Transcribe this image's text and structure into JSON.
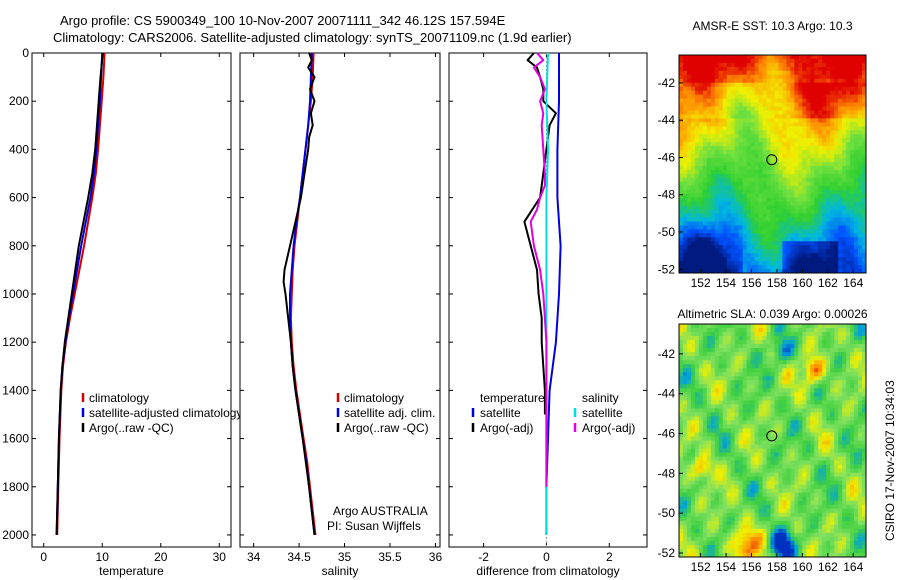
{
  "header": {
    "title_line1": "Argo profile: CS 5900349_100 10-Nov-2007 20071111_342 46.12S 157.594E",
    "title_line2": "Climatology: CARS2006. Satellite-adjusted climatology: synTS_20071109.nc (1.9d earlier)"
  },
  "side_label": "CSIRO 17-Nov-2007 10:34:03",
  "credits": {
    "line1": "Argo AUSTRALIA",
    "line2": "PI: Susan Wijffels"
  },
  "colors": {
    "red": "#d40000",
    "blue": "#0000e0",
    "black": "#000000",
    "cyan": "#00e0e0",
    "magenta": "#e000e0",
    "grid": "#cccccc"
  },
  "chart_data": [
    {
      "type": "line",
      "id": "temperature",
      "xlabel": "temperature",
      "xlim": [
        -2,
        32
      ],
      "ylim": [
        0,
        2050
      ],
      "y_inverted": true,
      "xticks": [
        0,
        10,
        20,
        30
      ],
      "yticks": [
        0,
        200,
        400,
        600,
        800,
        1000,
        1200,
        1400,
        1600,
        1800,
        2000
      ],
      "legend": {
        "position": "lower-right",
        "entries": [
          "climatology",
          "satellite-adjusted climatology",
          "Argo(..raw -QC)"
        ]
      },
      "series": [
        {
          "name": "climatology",
          "color": "red",
          "depth": [
            0,
            100,
            200,
            300,
            400,
            500,
            600,
            700,
            800,
            900,
            1000,
            1100,
            1200,
            1300,
            1400,
            1600,
            1800,
            2000
          ],
          "values": [
            10.4,
            10.2,
            9.9,
            9.6,
            9.3,
            8.9,
            8.3,
            7.6,
            6.9,
            6.1,
            5.3,
            4.5,
            3.8,
            3.3,
            3.0,
            2.7,
            2.5,
            2.3
          ]
        },
        {
          "name": "satellite-adjusted climatology",
          "color": "blue",
          "depth": [
            0,
            100,
            200,
            300,
            400,
            500,
            600,
            700,
            800,
            900,
            1000,
            1100,
            1200,
            1300,
            1400,
            1600,
            1800,
            2000
          ],
          "values": [
            10.0,
            9.8,
            9.6,
            9.3,
            9.0,
            8.6,
            8.0,
            7.2,
            6.4,
            5.7,
            5.0,
            4.3,
            3.7,
            3.2,
            2.9,
            2.6,
            2.4,
            2.2
          ]
        },
        {
          "name": "Argo(..raw -QC)",
          "color": "black",
          "depth": [
            0,
            100,
            200,
            300,
            400,
            500,
            600,
            700,
            800,
            900,
            1000,
            1100,
            1200,
            1300,
            1400,
            1600,
            1800,
            2000
          ],
          "values": [
            10.1,
            9.7,
            9.4,
            9.1,
            8.8,
            8.3,
            7.6,
            6.8,
            6.0,
            5.4,
            4.8,
            4.2,
            3.6,
            3.2,
            2.9,
            2.6,
            2.4,
            2.2
          ]
        }
      ]
    },
    {
      "type": "line",
      "id": "salinity",
      "xlabel": "salinity",
      "xlim": [
        33.85,
        36.05
      ],
      "ylim": [
        0,
        2050
      ],
      "y_inverted": true,
      "xticks": [
        34,
        34.5,
        35,
        35.5,
        36
      ],
      "legend": {
        "position": "lower-right",
        "entries": [
          "climatology",
          "satellite adj. clim.",
          "Argo(..raw -QC)"
        ]
      },
      "series": [
        {
          "name": "climatology",
          "color": "red",
          "depth": [
            0,
            100,
            200,
            300,
            400,
            500,
            600,
            700,
            800,
            900,
            1000,
            1100,
            1200,
            1300,
            1400,
            1500,
            1600,
            1700,
            1800,
            1900,
            2000
          ],
          "values": [
            34.66,
            34.65,
            34.63,
            34.6,
            34.57,
            34.54,
            34.51,
            34.48,
            34.45,
            34.43,
            34.42,
            34.41,
            34.42,
            34.44,
            34.47,
            34.51,
            34.55,
            34.59,
            34.62,
            34.65,
            34.68
          ]
        },
        {
          "name": "satellite adj. clim.",
          "color": "blue",
          "depth": [
            0,
            100,
            200,
            300,
            400,
            500,
            600,
            700,
            800,
            900,
            1000,
            1100,
            1200,
            1300,
            1400,
            1500,
            1600,
            1700,
            1800,
            1900,
            2000
          ],
          "values": [
            34.64,
            34.63,
            34.62,
            34.6,
            34.57,
            34.54,
            34.51,
            34.47,
            34.44,
            34.42,
            34.4,
            34.4,
            34.41,
            34.43,
            34.46,
            34.5,
            34.54,
            34.58,
            34.61,
            34.64,
            34.67
          ]
        },
        {
          "name": "Argo(..raw -QC)",
          "color": "black",
          "depth": [
            0,
            30,
            60,
            100,
            150,
            200,
            250,
            300,
            350,
            400,
            500,
            600,
            700,
            800,
            900,
            950,
            1000,
            1100,
            1200,
            1300,
            1400,
            1600,
            1800,
            2000
          ],
          "values": [
            34.61,
            34.64,
            34.6,
            34.67,
            34.62,
            34.67,
            34.63,
            34.65,
            34.61,
            34.6,
            34.56,
            34.52,
            34.46,
            34.4,
            34.34,
            34.33,
            34.35,
            34.38,
            34.41,
            34.43,
            34.46,
            34.54,
            34.61,
            34.67
          ]
        }
      ]
    },
    {
      "type": "line",
      "id": "difference",
      "xlabel": "difference from climatology",
      "xlim": [
        -3.1,
        3.2
      ],
      "ylim": [
        0,
        2050
      ],
      "y_inverted": true,
      "xticks": [
        -2,
        0,
        2
      ],
      "legend": {
        "position": "lower-center",
        "entries": [
          "temperature",
          "satellite",
          "Argo(-adj)",
          "salinity",
          "satellite",
          "Argo(-adj)"
        ]
      },
      "series": [
        {
          "name": "temperature satellite",
          "color": "blue",
          "depth": [
            0,
            200,
            400,
            600,
            800,
            1000,
            1200,
            1400,
            1600,
            1800,
            2000
          ],
          "values": [
            0.4,
            0.4,
            0.35,
            0.35,
            0.45,
            0.4,
            0.3,
            0.1,
            0.05,
            0.0,
            0.0
          ]
        },
        {
          "name": "temperature Argo(-adj)",
          "color": "black",
          "depth": [
            0,
            30,
            60,
            100,
            150,
            200,
            250,
            300,
            400,
            500,
            600,
            700,
            800,
            900,
            1000,
            1100,
            1200,
            1300,
            1400,
            1500
          ],
          "values": [
            -0.4,
            -0.6,
            -0.3,
            -0.2,
            -0.1,
            -0.1,
            0.3,
            0.1,
            0.0,
            -0.1,
            -0.2,
            -0.7,
            -0.5,
            -0.3,
            -0.25,
            -0.15,
            -0.15,
            -0.1,
            -0.05,
            -0.05
          ]
        },
        {
          "name": "salinity satellite",
          "color": "cyan",
          "depth": [
            0,
            200,
            400,
            600,
            800,
            1000,
            1200,
            1400,
            1600,
            1800,
            2000
          ],
          "values": [
            0.05,
            0.0,
            0.05,
            0.0,
            0.0,
            0.0,
            0.0,
            0.0,
            0.0,
            0.0,
            0.0
          ]
        },
        {
          "name": "salinity Argo(-adj)",
          "color": "magenta",
          "depth": [
            0,
            30,
            60,
            100,
            150,
            200,
            250,
            300,
            400,
            500,
            550,
            600,
            650,
            700,
            800,
            900,
            1000,
            1100,
            1200,
            1400,
            1600,
            1800
          ],
          "values": [
            -0.3,
            -0.1,
            -0.4,
            -0.2,
            -0.05,
            -0.2,
            -0.1,
            -0.15,
            -0.1,
            -0.05,
            -0.05,
            -0.2,
            -0.3,
            -0.5,
            -0.4,
            -0.2,
            -0.1,
            -0.05,
            0.0,
            0.0,
            0.0,
            0.0
          ]
        }
      ]
    },
    {
      "type": "heatmap",
      "id": "sst_map",
      "title": "AMSR-E SST: 10.3  Argo: 10.3",
      "xticks": [
        152,
        154,
        156,
        158,
        160,
        162,
        164
      ],
      "yticks": [
        -42,
        -44,
        -46,
        -48,
        -50,
        -52
      ],
      "xlim": [
        150.3,
        165.0
      ],
      "ylim": [
        -52.2,
        -40.5
      ],
      "marker": {
        "lon": 157.594,
        "lat": -46.12
      },
      "colormap": [
        "#001a80",
        "#0050ff",
        "#00b8e0",
        "#30d030",
        "#70e040",
        "#f0f000",
        "#ff9000",
        "#e00000"
      ]
    },
    {
      "type": "heatmap",
      "id": "sla_map",
      "title": "Altimetric SLA: 0.039  Argo: 0.00026",
      "xticks": [
        152,
        154,
        156,
        158,
        160,
        162,
        164
      ],
      "yticks": [
        -42,
        -44,
        -46,
        -48,
        -50,
        -52
      ],
      "xlim": [
        150.3,
        165.0
      ],
      "ylim": [
        -52.2,
        -40.5
      ],
      "marker": {
        "lon": 157.594,
        "lat": -46.12
      },
      "colormap": [
        "#0030c0",
        "#00a0e0",
        "#40d040",
        "#80e060",
        "#f0f000",
        "#ff9000",
        "#e00000"
      ]
    }
  ]
}
